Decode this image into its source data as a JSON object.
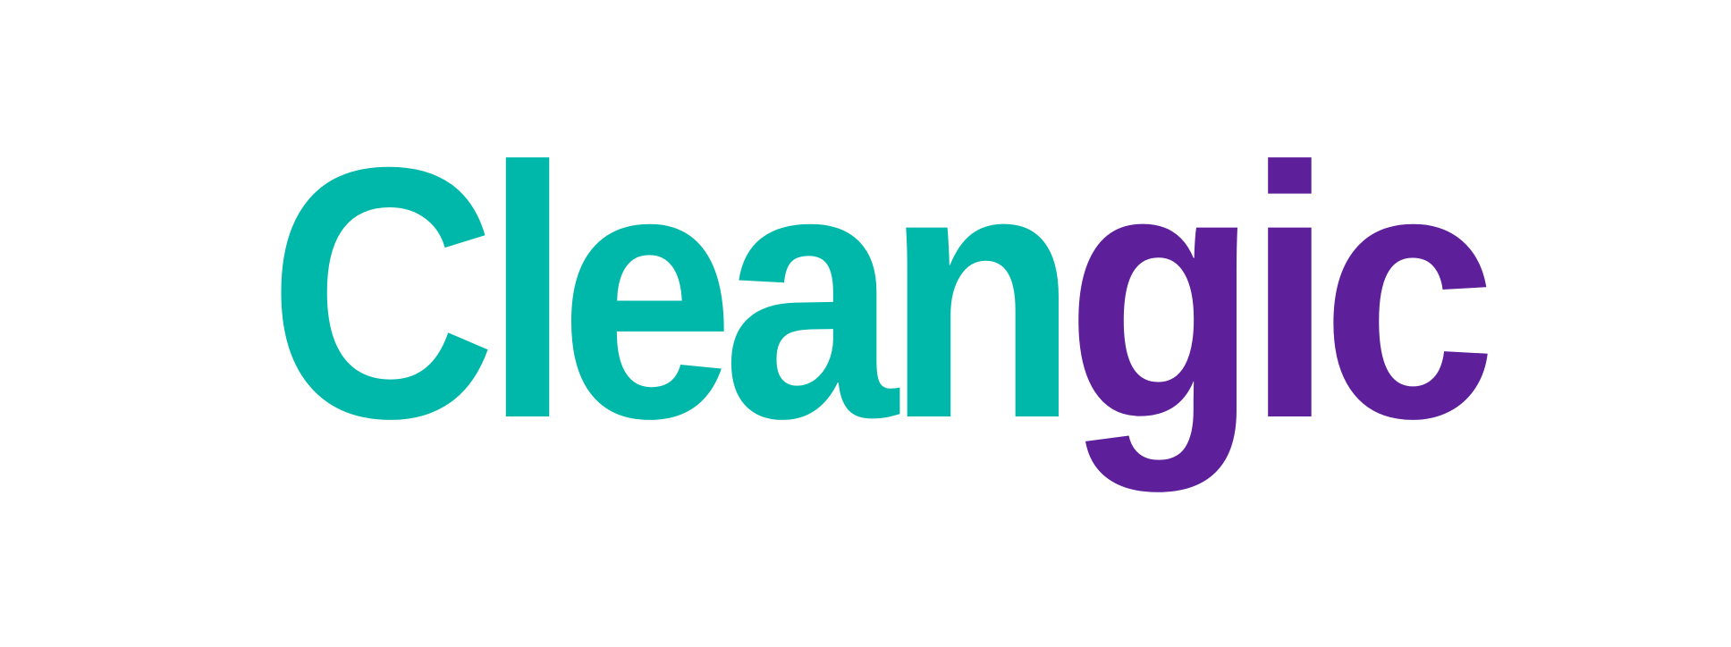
{
  "logo": {
    "wordmark": "Cleangic",
    "part_primary": "Clean",
    "part_secondary": "gic",
    "colors": {
      "primary": "#00B8AA",
      "secondary": "#5E1F9B",
      "background": "#FFFFFF"
    }
  }
}
